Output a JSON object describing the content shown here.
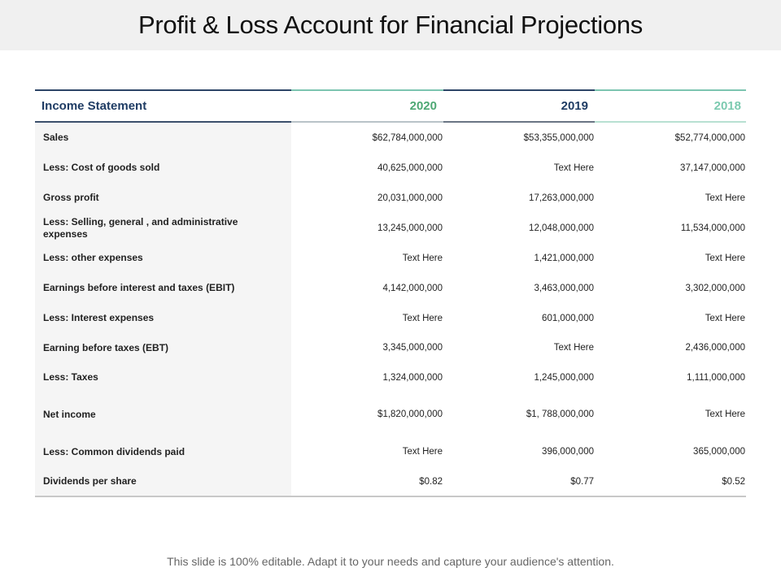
{
  "title": "Profit & Loss Account for Financial Projections",
  "table": {
    "headers": [
      "Income Statement",
      "2020",
      "2019",
      "2018"
    ],
    "header_colors": {
      "income_statement": "#1f3c64",
      "2020": "#4ea874",
      "2019": "#1f3c64",
      "2018": "#7ccab0"
    },
    "rows": [
      {
        "label": "Sales",
        "values": [
          "$62,784,000,000",
          "$53,355,000,000",
          "$52,774,000,000"
        ]
      },
      {
        "label": "Less:  Cost  of goods sold",
        "values": [
          "40,625,000,000",
          "Text Here",
          "37,147,000,000"
        ]
      },
      {
        "label": "Gross  profit",
        "values": [
          "20,031,000,000",
          "17,263,000,000",
          "Text Here"
        ]
      },
      {
        "label": "Less:  Selling, general , and administrative expenses",
        "values": [
          "13,245,000,000",
          "12,048,000,000",
          "11,534,000,000"
        ]
      },
      {
        "label": "Less:  other expenses",
        "values": [
          "Text Here",
          "1,421,000,000",
          "Text Here"
        ]
      },
      {
        "label": "Earnings before interest and taxes (EBIT)",
        "values": [
          "4,142,000,000",
          "3,463,000,000",
          "3,302,000,000"
        ]
      },
      {
        "label": "Less:  Interest expenses",
        "values": [
          "Text Here",
          "601,000,000",
          "Text Here"
        ]
      },
      {
        "label": "Earning before taxes (EBT)",
        "values": [
          "3,345,000,000",
          "Text Here",
          "2,436,000,000"
        ]
      },
      {
        "label": "Less:  Taxes",
        "values": [
          "1,324,000,000",
          "1,245,000,000",
          "1,111,000,000"
        ]
      },
      {
        "label": "Net income",
        "values": [
          "$1,820,000,000",
          "$1, 788,000,000",
          "Text Here"
        ]
      },
      {
        "label": "Less:  Common dividends paid",
        "values": [
          "Text Here",
          "396,000,000",
          "365,000,000"
        ]
      },
      {
        "label": "Dividends per share",
        "values": [
          "$0.82",
          "$0.77",
          "$0.52"
        ]
      }
    ]
  },
  "footer": "This slide is 100% editable. Adapt it to your needs and capture your audience's attention."
}
